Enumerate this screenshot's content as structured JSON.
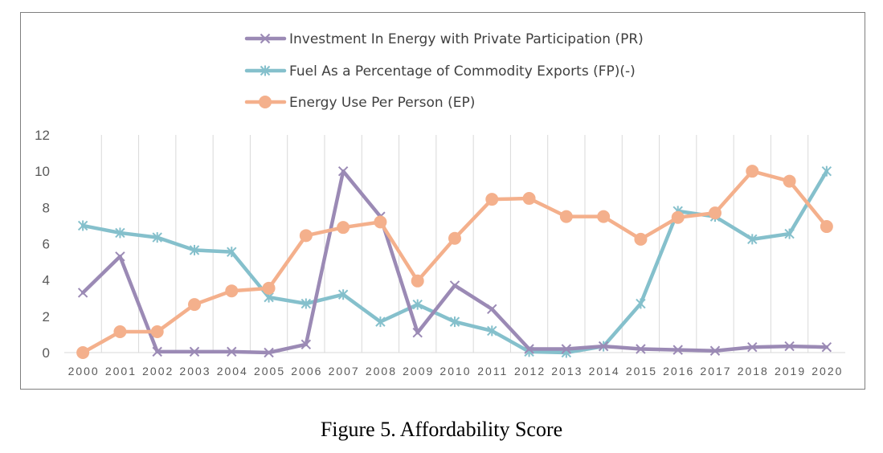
{
  "caption": "Figure 5. Affordability Score",
  "chart_data": {
    "type": "line",
    "title": "",
    "xlabel": "",
    "ylabel": "",
    "categories": [
      "2000",
      "2001",
      "2002",
      "2003",
      "2004",
      "2005",
      "2006",
      "2007",
      "2008",
      "2009",
      "2010",
      "2011",
      "2012",
      "2013",
      "2014",
      "2015",
      "2016",
      "2017",
      "2018",
      "2019",
      "2020"
    ],
    "ylim": [
      0,
      12
    ],
    "yticks": [
      0,
      2,
      4,
      6,
      8,
      10,
      12
    ],
    "grid": "vertical",
    "legend_position": "top",
    "series": [
      {
        "name": "Investment In Energy with Private Participation (PR)",
        "color": "#9b8ab5",
        "marker": "x",
        "values": [
          3.3,
          5.3,
          0.05,
          0.05,
          0.05,
          0.0,
          0.45,
          10.0,
          7.5,
          1.1,
          3.7,
          2.4,
          0.2,
          0.2,
          0.35,
          0.2,
          0.15,
          0.1,
          0.3,
          0.35,
          0.3
        ]
      },
      {
        "name": "Fuel As a Percentage of Commodity Exports (FP)(-)",
        "color": "#85c0cc",
        "marker": "asterisk",
        "values": [
          7.0,
          6.6,
          6.35,
          5.65,
          5.55,
          3.05,
          2.7,
          3.2,
          1.7,
          2.65,
          1.7,
          1.2,
          0.05,
          0.0,
          0.35,
          2.7,
          7.8,
          7.5,
          6.25,
          6.55,
          10.0
        ]
      },
      {
        "name": "Energy Use Per Person (EP)",
        "color": "#f4b08c",
        "marker": "circle",
        "values": [
          0.0,
          1.15,
          1.15,
          2.65,
          3.4,
          3.55,
          6.45,
          6.9,
          7.2,
          3.95,
          6.3,
          8.45,
          8.5,
          7.5,
          7.5,
          6.25,
          7.45,
          7.7,
          10.0,
          9.45,
          6.95
        ]
      }
    ]
  }
}
